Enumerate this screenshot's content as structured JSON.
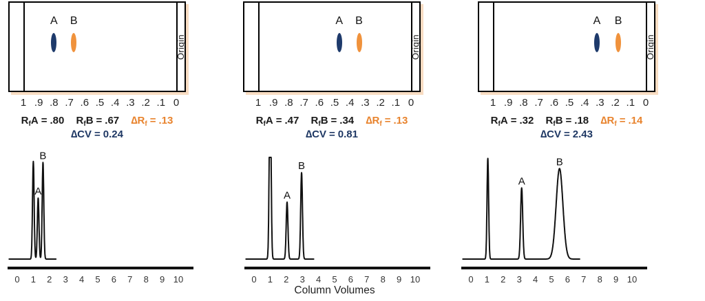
{
  "colors": {
    "navy": "#1f3864",
    "orange": "#e8832d",
    "spot_a": "#1e3a6b",
    "spot_b": "#f0923c",
    "shadow": "#f8dcc2",
    "ink": "#1a1a1a"
  },
  "origin_label": "Origin",
  "scale_ticks": [
    "1",
    ".9",
    ".8",
    ".7",
    ".6",
    ".5",
    ".4",
    ".3",
    ".2",
    ".1",
    "0"
  ],
  "panels": [
    {
      "spots": [
        {
          "label": "A",
          "rf": 0.8,
          "color": "spot_a"
        },
        {
          "label": "B",
          "rf": 0.67,
          "color": "spot_b"
        }
      ],
      "stats": [
        {
          "prefix": "R",
          "sub": "f",
          "name": "A",
          "eq": "=",
          "value": ".80"
        },
        {
          "prefix": "R",
          "sub": "f",
          "name": "B",
          "eq": "=",
          "value": ".67"
        },
        {
          "prefix": "∆R",
          "sub": "f",
          "name": "",
          "eq": "=",
          "value": ".13"
        }
      ],
      "cv": {
        "label": "∆CV",
        "eq": "=",
        "value": "0.24"
      }
    },
    {
      "spots": [
        {
          "label": "A",
          "rf": 0.47,
          "color": "spot_a"
        },
        {
          "label": "B",
          "rf": 0.34,
          "color": "spot_b"
        }
      ],
      "stats": [
        {
          "prefix": "R",
          "sub": "f",
          "name": "A",
          "eq": "=",
          "value": ".47"
        },
        {
          "prefix": "R",
          "sub": "f",
          "name": "B",
          "eq": "=",
          "value": ".34"
        },
        {
          "prefix": "∆R",
          "sub": "f",
          "name": "",
          "eq": "=",
          "value": ".13"
        }
      ],
      "cv": {
        "label": "∆CV",
        "eq": "=",
        "value": "0.81"
      }
    },
    {
      "spots": [
        {
          "label": "A",
          "rf": 0.32,
          "color": "spot_a"
        },
        {
          "label": "B",
          "rf": 0.18,
          "color": "spot_b"
        }
      ],
      "stats": [
        {
          "prefix": "R",
          "sub": "f",
          "name": "A",
          "eq": "=",
          "value": ".32"
        },
        {
          "prefix": "R",
          "sub": "f",
          "name": "B",
          "eq": "=",
          "value": ".18"
        },
        {
          "prefix": "∆R",
          "sub": "f",
          "name": "",
          "eq": "=",
          "value": ".14"
        }
      ],
      "cv": {
        "label": "∆CV",
        "eq": "=",
        "value": "2.43"
      }
    }
  ],
  "chart_data": [
    {
      "type": "line",
      "title": "",
      "xlabel": "",
      "ylabel": "",
      "x_range": [
        0,
        10
      ],
      "x_ticks": [
        "0",
        "1",
        "2",
        "3",
        "4",
        "5",
        "6",
        "7",
        "8",
        "9",
        "10"
      ],
      "grid": false,
      "legend": false,
      "curve_start_cv": -0.5,
      "curve_end_cv": 2.4,
      "peaks": [
        {
          "label": "",
          "cv": 1.0,
          "height": 0.96,
          "sigma": 0.05
        },
        {
          "label": "A",
          "cv": 1.3,
          "height": 0.6,
          "sigma": 0.05
        },
        {
          "label": "B",
          "cv": 1.6,
          "height": 0.95,
          "sigma": 0.05
        }
      ]
    },
    {
      "type": "line",
      "title": "",
      "xlabel": "Column Volumes",
      "ylabel": "",
      "x_range": [
        0,
        10
      ],
      "x_ticks": [
        "0",
        "1",
        "2",
        "3",
        "4",
        "5",
        "6",
        "7",
        "8",
        "9",
        "10"
      ],
      "grid": false,
      "legend": false,
      "curve_start_cv": -0.5,
      "curve_end_cv": 3.7,
      "peaks": [
        {
          "label": "",
          "cv": 1.0,
          "height": 1.0,
          "sigma": 0.055,
          "clipped_top": true
        },
        {
          "label": "A",
          "cv": 2.05,
          "height": 0.56,
          "sigma": 0.055
        },
        {
          "label": "B",
          "cv": 2.95,
          "height": 0.85,
          "sigma": 0.055
        }
      ]
    },
    {
      "type": "line",
      "title": "",
      "xlabel": "",
      "ylabel": "",
      "x_range": [
        0,
        10
      ],
      "x_ticks": [
        "0",
        "1",
        "2",
        "3",
        "4",
        "5",
        "6",
        "7",
        "8",
        "9",
        "10"
      ],
      "grid": false,
      "legend": false,
      "curve_start_cv": -0.5,
      "curve_end_cv": 6.75,
      "peaks": [
        {
          "label": "",
          "cv": 1.05,
          "height": 0.99,
          "sigma": 0.05
        },
        {
          "label": "A",
          "cv": 3.15,
          "height": 0.7,
          "sigma": 0.065
        },
        {
          "label": "B",
          "cv": 5.5,
          "height": 0.89,
          "sigma": 0.21
        }
      ]
    }
  ]
}
